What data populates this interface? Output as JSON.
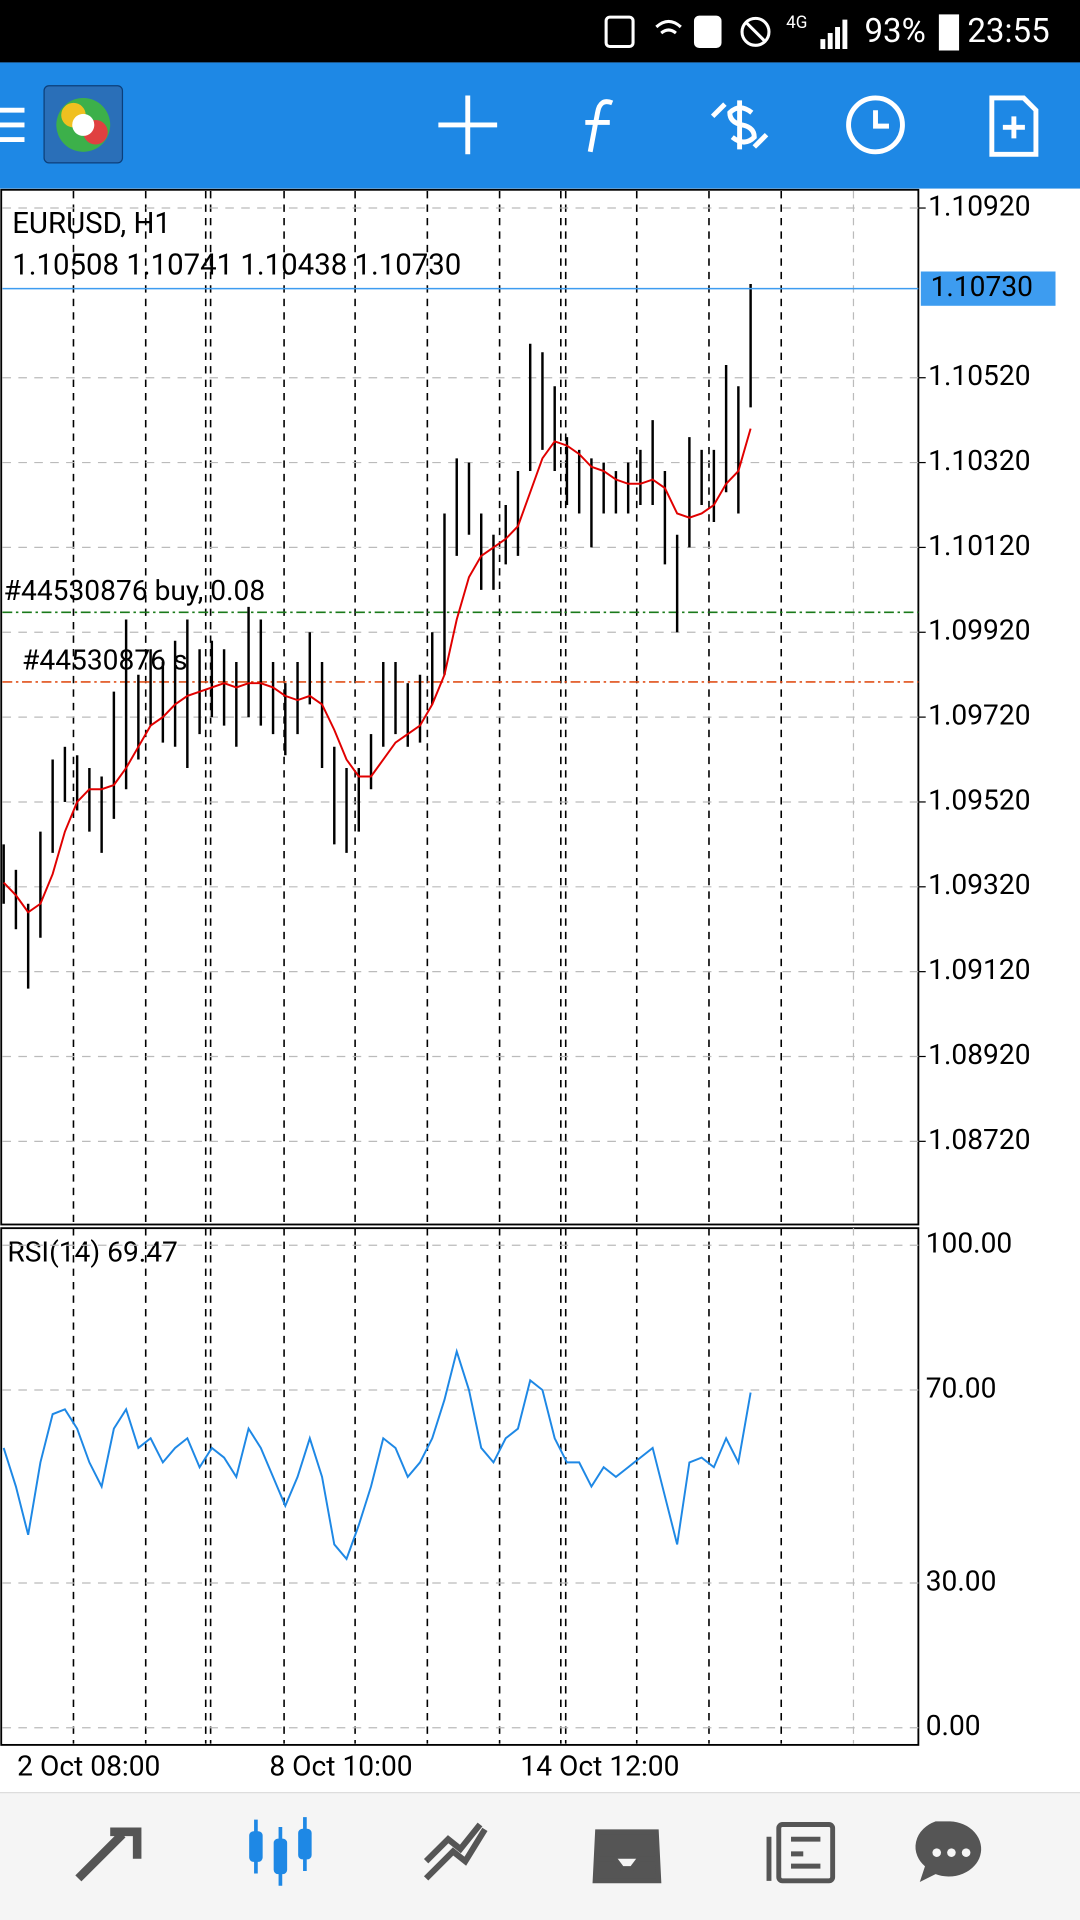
{
  "status_bar": {
    "network": "4G",
    "battery": "93%",
    "time": "23:55"
  },
  "chart_data": [
    {
      "type": "ohlc",
      "title": "EURUSD, H1",
      "subtitle": "1.10508 1.10741 1.10438 1.10730",
      "color": "#000000",
      "low": [
        1.0928,
        1.0922,
        1.0908,
        1.092,
        1.094,
        1.0952,
        1.095,
        1.0945,
        1.094,
        1.0948,
        1.0955,
        1.0962,
        1.097,
        1.0966,
        1.0965,
        1.096,
        1.0968,
        1.0972,
        1.097,
        1.0965,
        1.0972,
        1.097,
        1.0968,
        1.0963,
        1.0968,
        1.0975,
        1.096,
        1.0942,
        1.094,
        1.0945,
        1.0955,
        1.0965,
        1.0968,
        1.0965,
        1.0966,
        1.0975,
        1.0982,
        1.101,
        1.1015,
        1.1002,
        1.1002,
        1.1008,
        1.101,
        1.103,
        1.1035,
        1.103,
        1.1022,
        1.102,
        1.1012,
        1.102,
        1.102,
        1.102,
        1.1022,
        1.1022,
        1.1008,
        1.0992,
        1.1012,
        1.1022,
        1.1018,
        1.1025,
        1.102,
        1.1045
      ],
      "high": [
        1.0942,
        1.0936,
        1.0928,
        1.0945,
        1.0962,
        1.0965,
        1.0963,
        1.096,
        1.0958,
        1.0978,
        1.0995,
        1.0982,
        1.0988,
        1.0985,
        1.099,
        1.0995,
        1.0988,
        1.099,
        1.0988,
        1.0985,
        1.0998,
        1.0995,
        1.0985,
        1.098,
        1.0985,
        1.0992,
        1.0985,
        1.0965,
        1.096,
        1.096,
        1.0968,
        1.0985,
        1.0985,
        1.098,
        1.0982,
        1.0992,
        1.102,
        1.1033,
        1.1032,
        1.102,
        1.1015,
        1.1022,
        1.103,
        1.106,
        1.1058,
        1.105,
        1.1038,
        1.1035,
        1.1033,
        1.1032,
        1.103,
        1.1032,
        1.1035,
        1.1042,
        1.103,
        1.1015,
        1.1038,
        1.1035,
        1.1035,
        1.1055,
        1.105,
        1.10741
      ],
      "ma": {
        "color": "#e00000",
        "values": [
          1.0933,
          1.093,
          1.0926,
          1.0928,
          1.0935,
          1.0945,
          1.0952,
          1.0955,
          1.0955,
          1.0956,
          1.096,
          1.0965,
          1.097,
          1.0972,
          1.0975,
          1.0977,
          1.0978,
          1.0979,
          1.098,
          1.0979,
          1.098,
          1.098,
          1.0979,
          1.0977,
          1.0976,
          1.0977,
          1.0975,
          1.0969,
          1.0962,
          1.0958,
          1.0958,
          1.0962,
          1.0966,
          1.0968,
          1.097,
          1.0975,
          1.0982,
          1.0995,
          1.1005,
          1.101,
          1.1012,
          1.1014,
          1.1017,
          1.1025,
          1.1033,
          1.1037,
          1.1036,
          1.1034,
          1.1031,
          1.103,
          1.1028,
          1.1027,
          1.1027,
          1.1028,
          1.1026,
          1.102,
          1.1019,
          1.102,
          1.1022,
          1.1027,
          1.103,
          1.104
        ]
      },
      "bid": {
        "value": 1.1073,
        "label": "1.10730",
        "color": "#3d9cf0"
      },
      "orders": [
        {
          "label": "#44530876 buy, 0.08",
          "price": 1.09967,
          "color": "#1a7a1a"
        },
        {
          "label": "#44530876 s",
          "price": 1.09803,
          "color": "#e0501a"
        }
      ],
      "ylim": [
        1.08524,
        1.10963
      ],
      "yticks": [
        {
          "value": 1.0872,
          "label": "1.08720"
        },
        {
          "value": 1.0892,
          "label": "1.08920"
        },
        {
          "value": 1.0912,
          "label": "1.09120"
        },
        {
          "value": 1.0932,
          "label": "1.09320"
        },
        {
          "value": 1.0952,
          "label": "1.09520"
        },
        {
          "value": 1.0972,
          "label": "1.09720"
        },
        {
          "value": 1.0992,
          "label": "1.09920"
        },
        {
          "value": 1.1012,
          "label": "1.10120"
        },
        {
          "value": 1.1032,
          "label": "1.10320"
        },
        {
          "value": 1.1052,
          "label": "1.10520"
        },
        {
          "value": 1.1092,
          "label": "1.10920"
        }
      ],
      "x_labels": [
        "2 Oct 08:00",
        "8 Oct 10:00",
        "14 Oct 12:00"
      ],
      "grid": true
    },
    {
      "type": "line",
      "title": "RSI(14) 69.47",
      "color": "#1e88e5",
      "values": [
        58,
        50,
        40,
        55,
        65,
        66,
        62,
        55,
        50,
        62,
        66,
        58,
        60,
        55,
        58,
        60,
        54,
        58,
        56,
        52,
        62,
        58,
        52,
        46,
        52,
        60,
        52,
        38,
        35,
        42,
        50,
        60,
        58,
        52,
        55,
        60,
        68,
        78,
        70,
        58,
        55,
        60,
        62,
        72,
        70,
        60,
        55,
        55,
        50,
        54,
        52,
        54,
        56,
        58,
        48,
        38,
        55,
        56,
        54,
        60,
        55,
        69.47
      ],
      "ylim": [
        -3.55,
        103.55
      ],
      "yticks": [
        {
          "value": 0,
          "label": "0.00"
        },
        {
          "value": 30,
          "label": "30.00"
        },
        {
          "value": 70,
          "label": "70.00"
        },
        {
          "value": 100,
          "label": "100.00"
        }
      ],
      "grid": true
    }
  ]
}
